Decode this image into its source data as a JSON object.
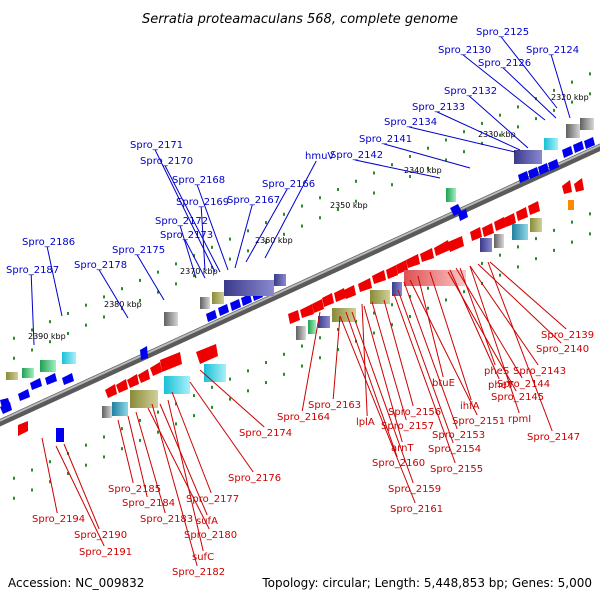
{
  "title": "Serratia proteamaculans 568, complete genome",
  "footer": {
    "accession": "Accession: NC_009832",
    "summary": "Topology: circular; Length: 5,448,853 bp; Genes: 5,000"
  },
  "scale_labels": [
    "2320 kbp",
    "2330 kbp",
    "2340 kbp",
    "2350 kbp",
    "2360 kbp",
    "2370 kbp",
    "2380 kbp",
    "2390 kbp"
  ],
  "upper_gene_labels": [
    "Spro_2125",
    "Spro_2130",
    "Spro_2124",
    "Spro_2126",
    "Spro_2132",
    "Spro_2133",
    "Spro_2134",
    "Spro_2141",
    "Spro_2142",
    "hmuV",
    "Spro_2171",
    "Spro_2170",
    "Spro_2168",
    "Spro_2166",
    "Spro_2169",
    "Spro_2167",
    "Spro_2172",
    "Spro_2173",
    "Spro_2186",
    "Spro_2175",
    "Spro_2178",
    "Spro_2187"
  ],
  "lower_gene_labels": [
    "Spro_2139",
    "Spro_2140",
    "Spro_2143",
    "pheS",
    "Spro_2144",
    "pheT",
    "btuE",
    "Spro_2145",
    "ihfA",
    "rpmI",
    "Spro_2151",
    "Spro_2147",
    "Spro_2163",
    "Spro_2164",
    "Spro_2156",
    "Spro_2157",
    "lplA",
    "Spro_2153",
    "arnT",
    "Spro_2154",
    "Spro_2160",
    "Spro_2155",
    "Spro_2174",
    "Spro_2176",
    "Spro_2159",
    "Spro_2161",
    "Spro_2185",
    "Spro_2184",
    "Spro_2177",
    "Spro_2194",
    "Spro_2183",
    "sufA",
    "Spro_2190",
    "Spro_2180",
    "Spro_2191",
    "sufC",
    "Spro_2182"
  ],
  "colors": {
    "forward_label": "#0000cc",
    "reverse_label": "#cc0000",
    "backbone": "#888888",
    "tick": "#2a8a2a"
  }
}
